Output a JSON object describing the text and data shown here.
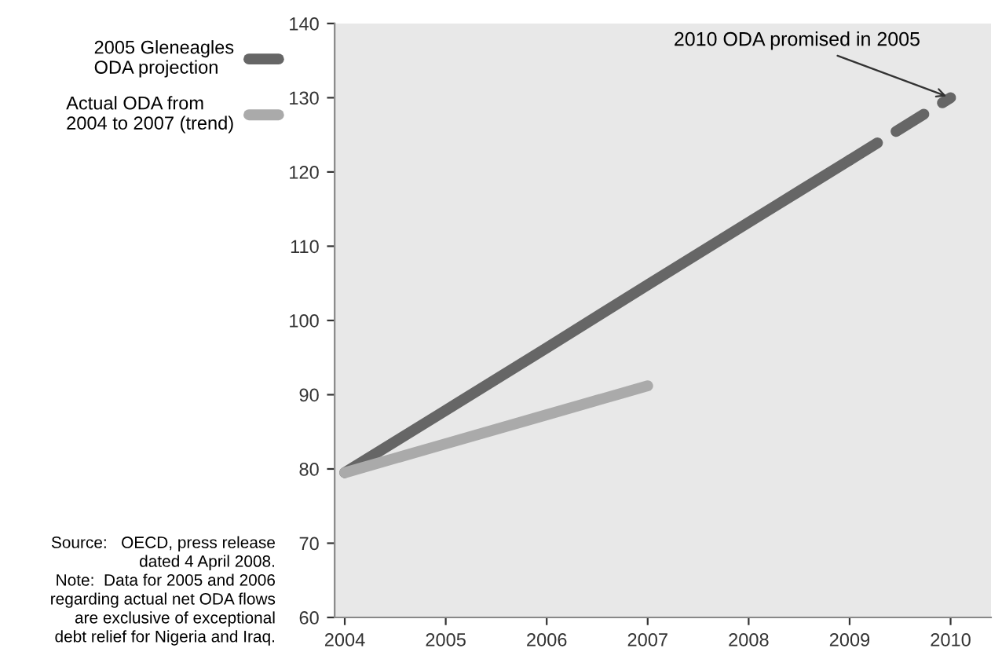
{
  "chart_data": {
    "type": "line",
    "categories": [
      "2004",
      "2005",
      "2006",
      "2007",
      "2008",
      "2009",
      "2010"
    ],
    "series": [
      {
        "name": "2005 Gleneagles\nODA projection",
        "color": "#666666",
        "values": [
          79.5,
          87.9,
          96.3,
          104.8,
          113.2,
          121.6,
          null
        ]
      },
      {
        "color": "#666666",
        "line_style": "dashed",
        "values": [
          null,
          null,
          null,
          null,
          null,
          121.6,
          130
        ]
      },
      {
        "name": "Actual ODA from\n2004 to 2007 (trend)",
        "color": "#aaaaaa",
        "values": [
          79.5,
          83.4,
          87.3,
          91.2,
          null,
          null,
          null
        ]
      }
    ],
    "ylim": [
      60,
      140
    ],
    "yticks": [
      60,
      70,
      80,
      90,
      100,
      110,
      120,
      130,
      140
    ],
    "grid": false,
    "legend": "left",
    "marker": "none",
    "line_style": "solid",
    "annotations": [
      {
        "text": "2010 ODA promised in 2005",
        "x": "2010",
        "y": 130
      },
      "Source:   OECD, press release\ndated 4 April 2008.\nNote:  Data for 2005 and 2006\nregarding actual net ODA flows\nare exclusive of exceptional\ndebt relief for Nigeria and Iraq."
    ]
  }
}
